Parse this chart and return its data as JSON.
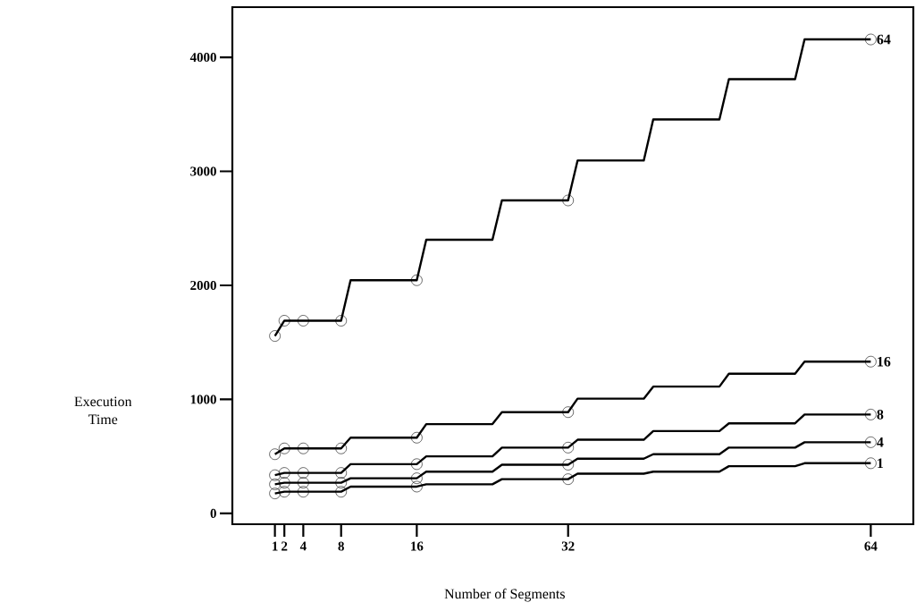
{
  "chart_data": {
    "type": "line",
    "xlabel": "Number of Segments",
    "ylabel": "Execution Time",
    "xlim": [
      -3.5,
      68.5
    ],
    "ylim": [
      -95,
      4440
    ],
    "xticks": [
      1,
      2,
      4,
      8,
      16,
      32,
      64
    ],
    "yticks": [
      0,
      1000,
      2000,
      3000,
      4000
    ],
    "series": [
      {
        "name": "64",
        "marker": "none",
        "color": "#000000",
        "x": [
          1,
          2,
          8,
          9,
          16,
          17,
          24,
          25,
          32,
          33,
          40,
          41,
          48,
          49,
          56,
          57,
          64
        ],
        "values": [
          1556,
          1690,
          1690,
          2045,
          2045,
          2400,
          2400,
          2745,
          2745,
          3095,
          3095,
          3455,
          3455,
          3808,
          3808,
          4157,
          4157
        ]
      },
      {
        "name": "16",
        "marker": "none",
        "color": "#000000",
        "x": [
          1,
          2,
          8,
          9,
          16,
          17,
          24,
          25,
          32,
          33,
          40,
          41,
          48,
          49,
          56,
          57,
          64
        ],
        "values": [
          519,
          570,
          570,
          664,
          664,
          783,
          783,
          888,
          888,
          1006,
          1006,
          1112,
          1112,
          1225,
          1225,
          1331,
          1331
        ]
      },
      {
        "name": "8",
        "marker": "none",
        "color": "#000000",
        "x": [
          1,
          2,
          8,
          9,
          16,
          17,
          24,
          25,
          32,
          33,
          40,
          41,
          48,
          49,
          56,
          57,
          64
        ],
        "values": [
          335,
          355,
          355,
          432,
          432,
          500,
          500,
          577,
          577,
          646,
          646,
          722,
          722,
          790,
          790,
          867,
          867
        ]
      },
      {
        "name": "4",
        "marker": "none",
        "color": "#000000",
        "x": [
          1,
          2,
          8,
          9,
          16,
          17,
          24,
          25,
          32,
          33,
          40,
          41,
          48,
          49,
          56,
          57,
          64
        ],
        "values": [
          255,
          269,
          269,
          308,
          308,
          366,
          366,
          427,
          427,
          480,
          480,
          519,
          519,
          577,
          577,
          624,
          624
        ]
      },
      {
        "name": "1",
        "marker": "none",
        "color": "#000000",
        "x": [
          1,
          2,
          8,
          9,
          16,
          17,
          24,
          25,
          32,
          33,
          40,
          41,
          48,
          49,
          56,
          57,
          64
        ],
        "values": [
          175,
          190,
          190,
          235,
          235,
          255,
          255,
          300,
          300,
          348,
          348,
          366,
          366,
          414,
          414,
          440,
          440
        ]
      },
      {
        "type": "scatter",
        "marker": "circle",
        "color": "#000000",
        "x": [
          1,
          2,
          4,
          8,
          16,
          32,
          64
        ],
        "values": [
          1556,
          1690,
          1690,
          1690,
          2045,
          2745,
          4157
        ]
      },
      {
        "type": "scatter",
        "marker": "circle",
        "color": "#000000",
        "x": [
          1,
          2,
          4,
          8,
          16,
          32,
          64
        ],
        "values": [
          519,
          570,
          570,
          570,
          664,
          888,
          1331
        ]
      },
      {
        "type": "scatter",
        "marker": "circle",
        "color": "#000000",
        "x": [
          1,
          2,
          4,
          8,
          16,
          32,
          64
        ],
        "values": [
          335,
          355,
          355,
          355,
          432,
          577,
          867
        ]
      },
      {
        "type": "scatter",
        "marker": "circle",
        "color": "#000000",
        "x": [
          1,
          2,
          4,
          8,
          16,
          32,
          64
        ],
        "values": [
          255,
          269,
          269,
          269,
          308,
          427,
          624
        ]
      },
      {
        "type": "scatter",
        "marker": "circle",
        "color": "#000000",
        "x": [
          1,
          2,
          4,
          8,
          16,
          32,
          64
        ],
        "values": [
          175,
          190,
          190,
          190,
          235,
          300,
          440
        ]
      }
    ]
  }
}
